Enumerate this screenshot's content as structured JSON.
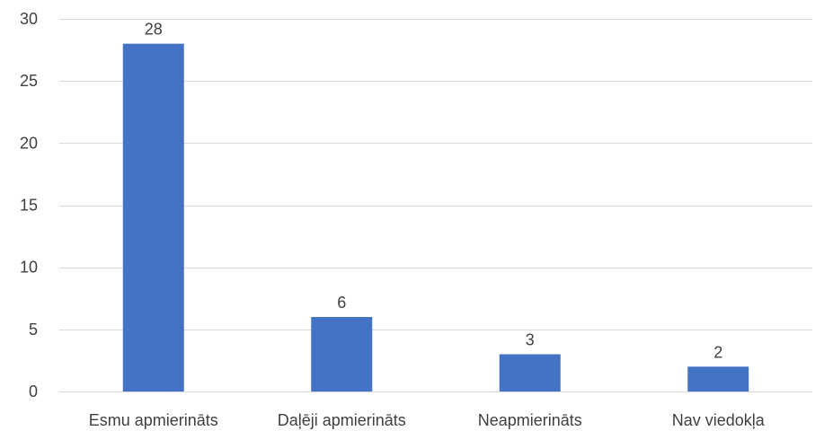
{
  "chart_data": {
    "type": "bar",
    "title": "",
    "xlabel": "",
    "ylabel": "",
    "categories": [
      "Esmu apmierināts",
      "Daļēji apmierināts",
      "Neapmierināts",
      "Nav viedokļa"
    ],
    "values": [
      28,
      6,
      3,
      2
    ],
    "ylim": [
      0,
      30
    ],
    "yticks": [
      0,
      5,
      10,
      15,
      20,
      25,
      30
    ],
    "grid": true,
    "legend": "none",
    "data_labels": true,
    "bar_color": "#4472c4"
  }
}
